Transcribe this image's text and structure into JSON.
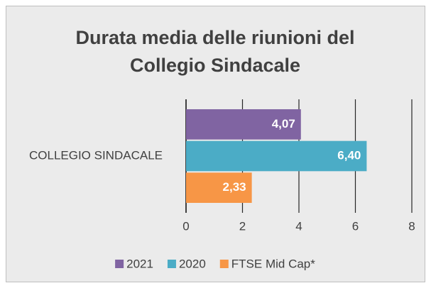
{
  "chart_data": {
    "type": "bar",
    "orientation": "horizontal",
    "title": "Durata media delle riunioni del Collegio Sindacale",
    "categories": [
      "COLLEGIO SINDACALE"
    ],
    "series": [
      {
        "name": "2021",
        "color": "#8064a2",
        "values": [
          4.07
        ],
        "value_labels": [
          "4,07"
        ]
      },
      {
        "name": "2020",
        "color": "#4bacc6",
        "values": [
          6.4
        ],
        "value_labels": [
          "6,40"
        ]
      },
      {
        "name": "FTSE Mid Cap*",
        "color": "#f79646",
        "values": [
          2.33
        ],
        "value_labels": [
          "2,33"
        ]
      }
    ],
    "xlim": [
      0,
      8
    ],
    "xticks": [
      0,
      2,
      4,
      6,
      8
    ],
    "grid": true,
    "legend": "bottom"
  }
}
